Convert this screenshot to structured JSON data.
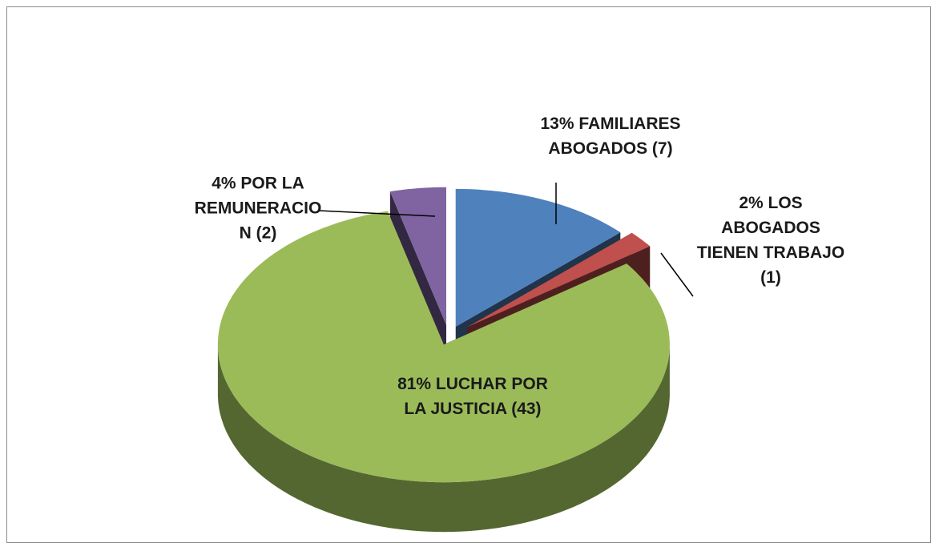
{
  "chart_data": {
    "type": "pie",
    "values": [
      13,
      2,
      81,
      4
    ],
    "value_labels": [
      "13% FAMILIARES ABOGADOS (7)",
      "2% LOS ABOGADOS TIENEN TRABAJO (1)",
      "81% LUCHAR POR LA JUSTICIA (43)",
      "4% POR LA REMUNERACION (2)"
    ],
    "colors": [
      "#4f81bd",
      "#c0504d",
      "#9bbb59",
      "#8064a2"
    ]
  }
}
